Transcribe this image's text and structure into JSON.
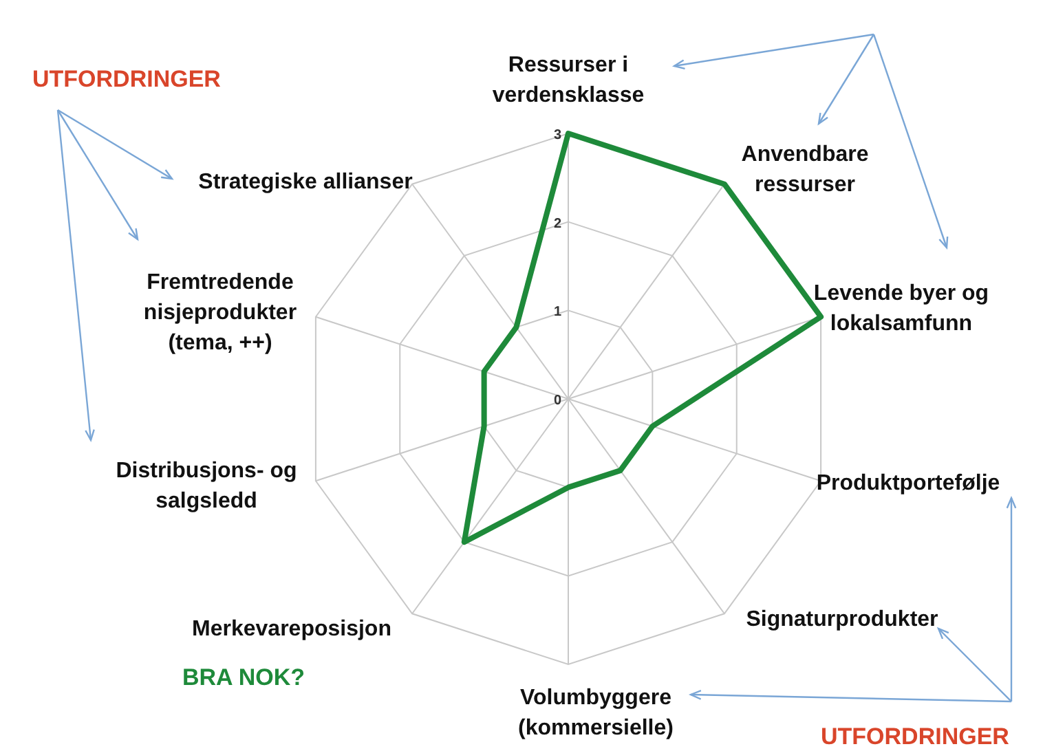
{
  "chart_data": {
    "type": "radar",
    "categories": [
      "Ressurser i verdensklasse",
      "Anvendbare ressurser",
      "Levende byer og lokalsamfunn",
      "Produktportefølje",
      "Signaturprodukter",
      "Volumbyggere (kommersielle)",
      "Merkevareposisjon",
      "Distribusjons- og salgsledd",
      "Fremtredende nisjeprodukter (tema, ++)",
      "Strategiske allianser"
    ],
    "series": [
      {
        "color": "#1e8a3a",
        "values": [
          3,
          3,
          3,
          1,
          1,
          1,
          2,
          1,
          1,
          1
        ]
      }
    ],
    "ylim": [
      0,
      3
    ],
    "yticks": [
      0,
      1,
      2,
      3
    ],
    "grid": true,
    "marker": "none",
    "annotations": [
      "UTFORDRINGER",
      "BRA NOK?",
      "UTFORDRINGER"
    ]
  }
}
